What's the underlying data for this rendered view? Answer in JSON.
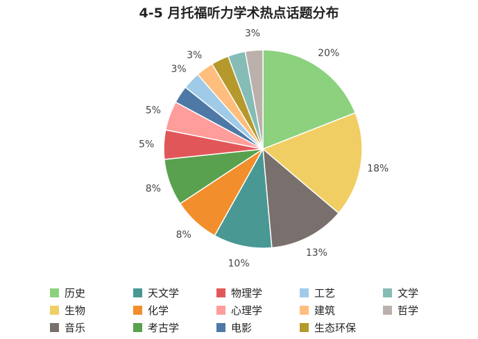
{
  "chart_data": {
    "type": "pie",
    "title": "4-5 月托福听力学术热点话题分布",
    "slices": [
      {
        "name": "历史",
        "value": 20,
        "label": "20%",
        "color": "#8cd17d"
      },
      {
        "name": "生物",
        "value": 18,
        "label": "18%",
        "color": "#f1ce63"
      },
      {
        "name": "音乐",
        "value": 13,
        "label": "13%",
        "color": "#79706e"
      },
      {
        "name": "天文学",
        "value": 10,
        "label": "10%",
        "color": "#499894"
      },
      {
        "name": "化学",
        "value": 8,
        "label": "8%",
        "color": "#f28e2b"
      },
      {
        "name": "考古学",
        "value": 8,
        "label": "8%",
        "color": "#59a14f"
      },
      {
        "name": "物理学",
        "value": 5,
        "label": "5%",
        "color": "#e15759"
      },
      {
        "name": "心理学",
        "value": 5,
        "label": "5%",
        "color": "#ff9d9a"
      },
      {
        "name": "电影",
        "value": 3,
        "label": "",
        "color": "#4e79a7"
      },
      {
        "name": "工艺",
        "value": 3,
        "label": "3%",
        "color": "#a0cbe8"
      },
      {
        "name": "建筑",
        "value": 3,
        "label": "3%",
        "color": "#ffbe7d"
      },
      {
        "name": "生态环保",
        "value": 3,
        "label": "",
        "color": "#b6992d"
      },
      {
        "name": "文学",
        "value": 3,
        "label": "",
        "color": "#86bcb6"
      },
      {
        "name": "哲学",
        "value": 3,
        "label": "3%",
        "color": "#bab0ac"
      }
    ],
    "legend": {
      "placement": "bottom",
      "order": [
        "历史",
        "天文学",
        "物理学",
        "工艺",
        "文学",
        "生物",
        "化学",
        "心理学",
        "建筑",
        "哲学",
        "音乐",
        "考古学",
        "电影",
        "生态环保"
      ]
    }
  }
}
